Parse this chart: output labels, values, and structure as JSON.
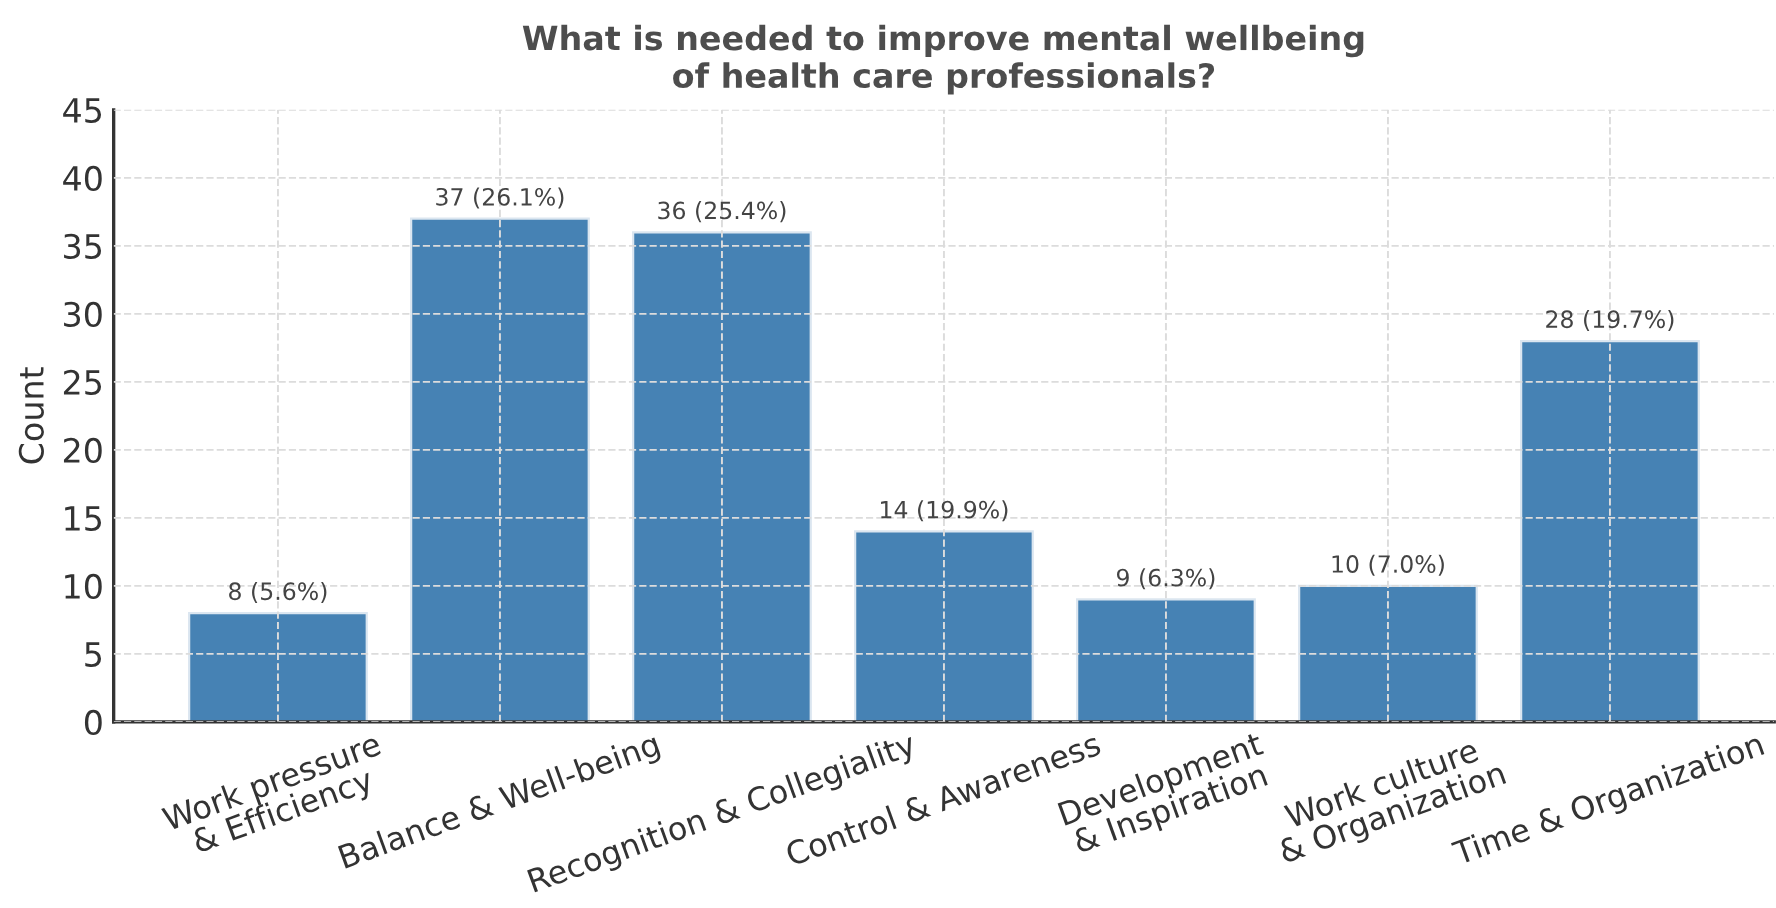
{
  "chart_data": {
    "type": "bar",
    "title": "What is needed to improve mental wellbeing\nof health care professionals?",
    "ylabel": "Count",
    "categories": [
      "Work pressure\n& Efficiency",
      "Balance & Well-being",
      "Recognition & Collegiality",
      "Control & Awareness",
      "Development\n& Inspiration",
      "Work culture\n& Organization",
      "Time & Organization"
    ],
    "values": [
      8,
      37,
      36,
      14,
      9,
      10,
      28
    ],
    "value_labels": [
      "8 (5.6%)",
      "37 (26.1%)",
      "36 (25.4%)",
      "14 (19.9%)",
      "9 (6.3%)",
      "10 (7.0%)",
      "28 (19.7%)"
    ],
    "color": "#4682b4",
    "ylim": [
      0,
      45
    ],
    "yticks": [
      0,
      5,
      10,
      15,
      20,
      25,
      30,
      35,
      40,
      45
    ],
    "grid": true
  }
}
